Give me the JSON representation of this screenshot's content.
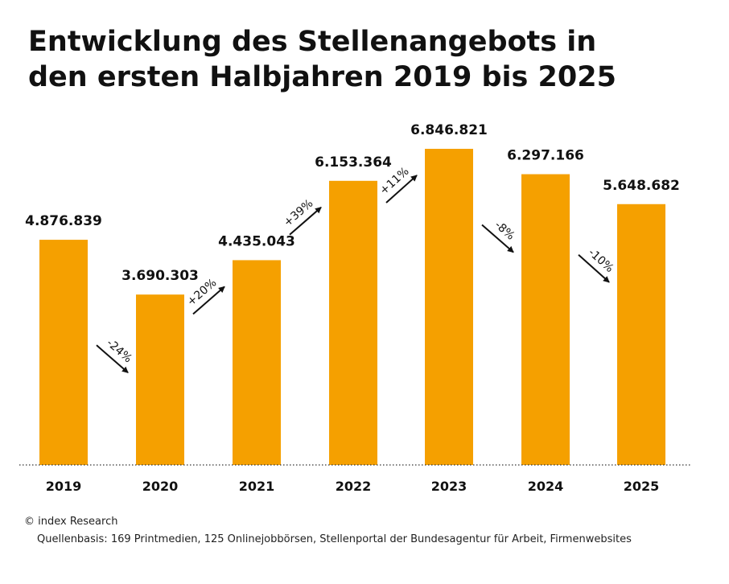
{
  "header": {
    "title_line1": "Entwicklung des Stellenangebots in",
    "title_line2": "den ersten Halbjahren 2019 bis 2025"
  },
  "footer": {
    "copyright": "© index Research",
    "source": "Quellenbasis: 169 Printmedien, 125 Onlinejobbörsen, Stellenportal der Bundesagentur für Arbeit, Firmenwebsites"
  },
  "chart_data": {
    "type": "bar",
    "title": "Entwicklung des Stellenangebots in den ersten Halbjahren 2019 bis 2025",
    "xlabel": "",
    "ylabel": "",
    "categories": [
      "2019",
      "2020",
      "2021",
      "2022",
      "2023",
      "2024",
      "2025"
    ],
    "values": [
      4876839,
      3690303,
      4435043,
      6153364,
      6846821,
      6297166,
      5648682
    ],
    "value_labels": [
      "4.876.839",
      "3.690.303",
      "4.435.043",
      "6.153.364",
      "6.846.821",
      "6.297.166",
      "5.648.682"
    ],
    "changes": [
      {
        "from": "2019",
        "to": "2020",
        "label": "-24%",
        "direction": "down"
      },
      {
        "from": "2020",
        "to": "2021",
        "label": "+20%",
        "direction": "up"
      },
      {
        "from": "2021",
        "to": "2022",
        "label": "+39%",
        "direction": "up"
      },
      {
        "from": "2022",
        "to": "2023",
        "label": "+11%",
        "direction": "up"
      },
      {
        "from": "2023",
        "to": "2024",
        "label": "-8%",
        "direction": "down"
      },
      {
        "from": "2024",
        "to": "2025",
        "label": "-10%",
        "direction": "down"
      }
    ],
    "ylim": [
      0,
      7200000
    ],
    "grid": false,
    "legend": "none",
    "bar_color": "#F5A000",
    "baseline_style": "dotted"
  }
}
